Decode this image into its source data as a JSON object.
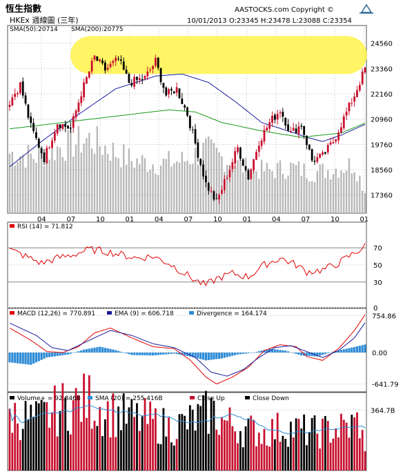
{
  "header": {
    "title": "恆生指數",
    "subtitle": "HKEx 週線圖 (三年)",
    "brand": "AASTOCKS.com Copyright ©",
    "quote": "10/01/2013  O:23345  H:23478  L:23088  C:23354"
  },
  "price_panel": {
    "sma_labels": [
      "SMA(50):20714",
      "SMA(200):20775"
    ],
    "y_ticks": [
      "24560",
      "23360",
      "22160",
      "20960",
      "19760",
      "18560",
      "17360"
    ],
    "x_ticks": [
      "04",
      "07",
      "10",
      "01",
      "04",
      "07",
      "10",
      "01",
      "04",
      "07",
      "10",
      "01"
    ]
  },
  "rsi_panel": {
    "label": "RSI (14) = 71.812",
    "y_ticks": [
      "70",
      "50",
      "30",
      "0"
    ]
  },
  "macd_panel": {
    "labels": [
      "MACD (12,26) = 770.891",
      "EMA (9) = 606.718",
      "Divergence = 164.174"
    ],
    "y_ticks": [
      "754.86",
      "0.00",
      "-641.79"
    ]
  },
  "volume_panel": {
    "labels": [
      "Volume+ = 92.846B",
      "SMA (20) = 255.416B",
      "Close Up",
      "Close Down"
    ],
    "y_ticks": [
      "364.7B"
    ]
  },
  "colors": {
    "up": "#c8102e",
    "down": "#000000",
    "sma50": "#1a1a9c",
    "sma200": "#1a9c1a",
    "rsi": "#e00000",
    "macd": "#e00000",
    "ema": "#1a1a9c",
    "divergence": "#2e8bd6",
    "price_volume": "#b8b8b8",
    "highlight": "#fff34a"
  },
  "chart_data": [
    {
      "type": "candlestick",
      "yscale": [
        16500,
        25400
      ],
      "close_anchors": [
        [
          0,
          21800
        ],
        [
          4,
          22600
        ],
        [
          8,
          20600
        ],
        [
          13,
          19100
        ],
        [
          18,
          20800
        ],
        [
          23,
          20500
        ],
        [
          27,
          22200
        ],
        [
          32,
          23900
        ],
        [
          36,
          23300
        ],
        [
          41,
          23800
        ],
        [
          45,
          22700
        ],
        [
          51,
          22900
        ],
        [
          55,
          23700
        ],
        [
          59,
          22100
        ],
        [
          63,
          22400
        ],
        [
          67,
          21200
        ],
        [
          70,
          19800
        ],
        [
          74,
          17900
        ],
        [
          78,
          17000
        ],
        [
          82,
          18300
        ],
        [
          86,
          19600
        ],
        [
          90,
          18200
        ],
        [
          94,
          19900
        ],
        [
          98,
          20800
        ],
        [
          102,
          21400
        ],
        [
          106,
          20300
        ],
        [
          110,
          20700
        ],
        [
          114,
          19000
        ],
        [
          118,
          19200
        ],
        [
          122,
          19900
        ],
        [
          126,
          21000
        ],
        [
          130,
          22100
        ],
        [
          134,
          23354
        ]
      ],
      "sma_series": [
        {
          "name": "SMA(50)",
          "color": "sma50",
          "anchors": [
            [
              0,
              18700
            ],
            [
              12,
              19900
            ],
            [
              25,
              21100
            ],
            [
              40,
              22400
            ],
            [
              55,
              23000
            ],
            [
              65,
              23100
            ],
            [
              75,
              22700
            ],
            [
              85,
              21800
            ],
            [
              95,
              20800
            ],
            [
              105,
              20400
            ],
            [
              112,
              20100
            ],
            [
              118,
              19900
            ],
            [
              125,
              20200
            ],
            [
              134,
              20714
            ]
          ]
        },
        {
          "name": "SMA(200)",
          "color": "sma200",
          "anchors": [
            [
              0,
              20500
            ],
            [
              20,
              20800
            ],
            [
              40,
              21100
            ],
            [
              60,
              21400
            ],
            [
              70,
              21300
            ],
            [
              80,
              20800
            ],
            [
              95,
              20400
            ],
            [
              110,
              20100
            ],
            [
              125,
              20300
            ],
            [
              134,
              20775
            ]
          ]
        }
      ],
      "highlight_band": [
        23100,
        24900
      ]
    },
    {
      "type": "line",
      "name": "RSI (14)",
      "ylim": [
        0,
        100
      ],
      "anchors": [
        [
          0,
          68
        ],
        [
          6,
          60
        ],
        [
          12,
          52
        ],
        [
          18,
          58
        ],
        [
          24,
          62
        ],
        [
          30,
          68
        ],
        [
          36,
          66
        ],
        [
          42,
          62
        ],
        [
          48,
          58
        ],
        [
          54,
          60
        ],
        [
          60,
          52
        ],
        [
          66,
          40
        ],
        [
          70,
          32
        ],
        [
          74,
          26
        ],
        [
          78,
          34
        ],
        [
          84,
          40
        ],
        [
          90,
          36
        ],
        [
          96,
          50
        ],
        [
          102,
          58
        ],
        [
          108,
          50
        ],
        [
          112,
          42
        ],
        [
          118,
          44
        ],
        [
          124,
          52
        ],
        [
          130,
          64
        ],
        [
          134,
          71.8
        ]
      ]
    },
    {
      "type": "line",
      "name": "MACD",
      "ylim": [
        -800,
        900
      ],
      "series": [
        {
          "name": "MACD (12,26)",
          "color": "macd",
          "anchors": [
            [
              0,
              500
            ],
            [
              8,
              250
            ],
            [
              14,
              20
            ],
            [
              20,
              0
            ],
            [
              26,
              120
            ],
            [
              32,
              400
            ],
            [
              38,
              500
            ],
            [
              46,
              300
            ],
            [
              54,
              120
            ],
            [
              62,
              80
            ],
            [
              68,
              -150
            ],
            [
              74,
              -500
            ],
            [
              78,
              -640
            ],
            [
              84,
              -500
            ],
            [
              90,
              -300
            ],
            [
              96,
              40
            ],
            [
              102,
              160
            ],
            [
              108,
              120
            ],
            [
              112,
              -80
            ],
            [
              118,
              -160
            ],
            [
              124,
              80
            ],
            [
              130,
              450
            ],
            [
              134,
              770.891
            ]
          ]
        },
        {
          "name": "EMA (9)",
          "color": "ema",
          "anchors": [
            [
              0,
              600
            ],
            [
              10,
              350
            ],
            [
              16,
              100
            ],
            [
              22,
              40
            ],
            [
              30,
              250
            ],
            [
              38,
              450
            ],
            [
              46,
              350
            ],
            [
              54,
              180
            ],
            [
              62,
              100
            ],
            [
              70,
              -100
            ],
            [
              76,
              -400
            ],
            [
              82,
              -480
            ],
            [
              88,
              -350
            ],
            [
              94,
              -100
            ],
            [
              100,
              100
            ],
            [
              106,
              140
            ],
            [
              112,
              20
            ],
            [
              118,
              -100
            ],
            [
              124,
              40
            ],
            [
              130,
              300
            ],
            [
              134,
              606.718
            ]
          ]
        }
      ],
      "divergence_anchors": [
        [
          0,
          -200
        ],
        [
          8,
          -250
        ],
        [
          14,
          -100
        ],
        [
          22,
          -40
        ],
        [
          28,
          60
        ],
        [
          34,
          120
        ],
        [
          40,
          50
        ],
        [
          46,
          -50
        ],
        [
          54,
          -60
        ],
        [
          62,
          -20
        ],
        [
          68,
          -80
        ],
        [
          74,
          -160
        ],
        [
          80,
          -120
        ],
        [
          86,
          -40
        ],
        [
          92,
          0
        ],
        [
          98,
          80
        ],
        [
          104,
          40
        ],
        [
          110,
          -60
        ],
        [
          116,
          -80
        ],
        [
          122,
          20
        ],
        [
          128,
          90
        ],
        [
          134,
          164.174
        ]
      ]
    },
    {
      "type": "bar",
      "name": "Volume",
      "ylim": [
        0,
        470
      ],
      "anchors": [
        [
          0,
          340
        ],
        [
          10,
          300
        ],
        [
          20,
          380
        ],
        [
          30,
          420
        ],
        [
          36,
          360
        ],
        [
          44,
          320
        ],
        [
          52,
          300
        ],
        [
          60,
          260
        ],
        [
          66,
          280
        ],
        [
          72,
          320
        ],
        [
          76,
          360
        ],
        [
          80,
          300
        ],
        [
          88,
          250
        ],
        [
          96,
          230
        ],
        [
          104,
          260
        ],
        [
          110,
          240
        ],
        [
          116,
          230
        ],
        [
          122,
          250
        ],
        [
          128,
          260
        ],
        [
          132,
          300
        ],
        [
          134,
          92.846
        ]
      ],
      "price_panel_volume_anchors": [
        [
          0,
          340
        ],
        [
          10,
          320
        ],
        [
          20,
          380
        ],
        [
          30,
          420
        ],
        [
          38,
          360
        ],
        [
          46,
          300
        ],
        [
          56,
          280
        ],
        [
          66,
          300
        ],
        [
          74,
          360
        ],
        [
          82,
          300
        ],
        [
          90,
          250
        ],
        [
          98,
          240
        ],
        [
          106,
          260
        ],
        [
          114,
          230
        ],
        [
          122,
          250
        ],
        [
          130,
          280
        ],
        [
          134,
          120
        ]
      ]
    }
  ]
}
